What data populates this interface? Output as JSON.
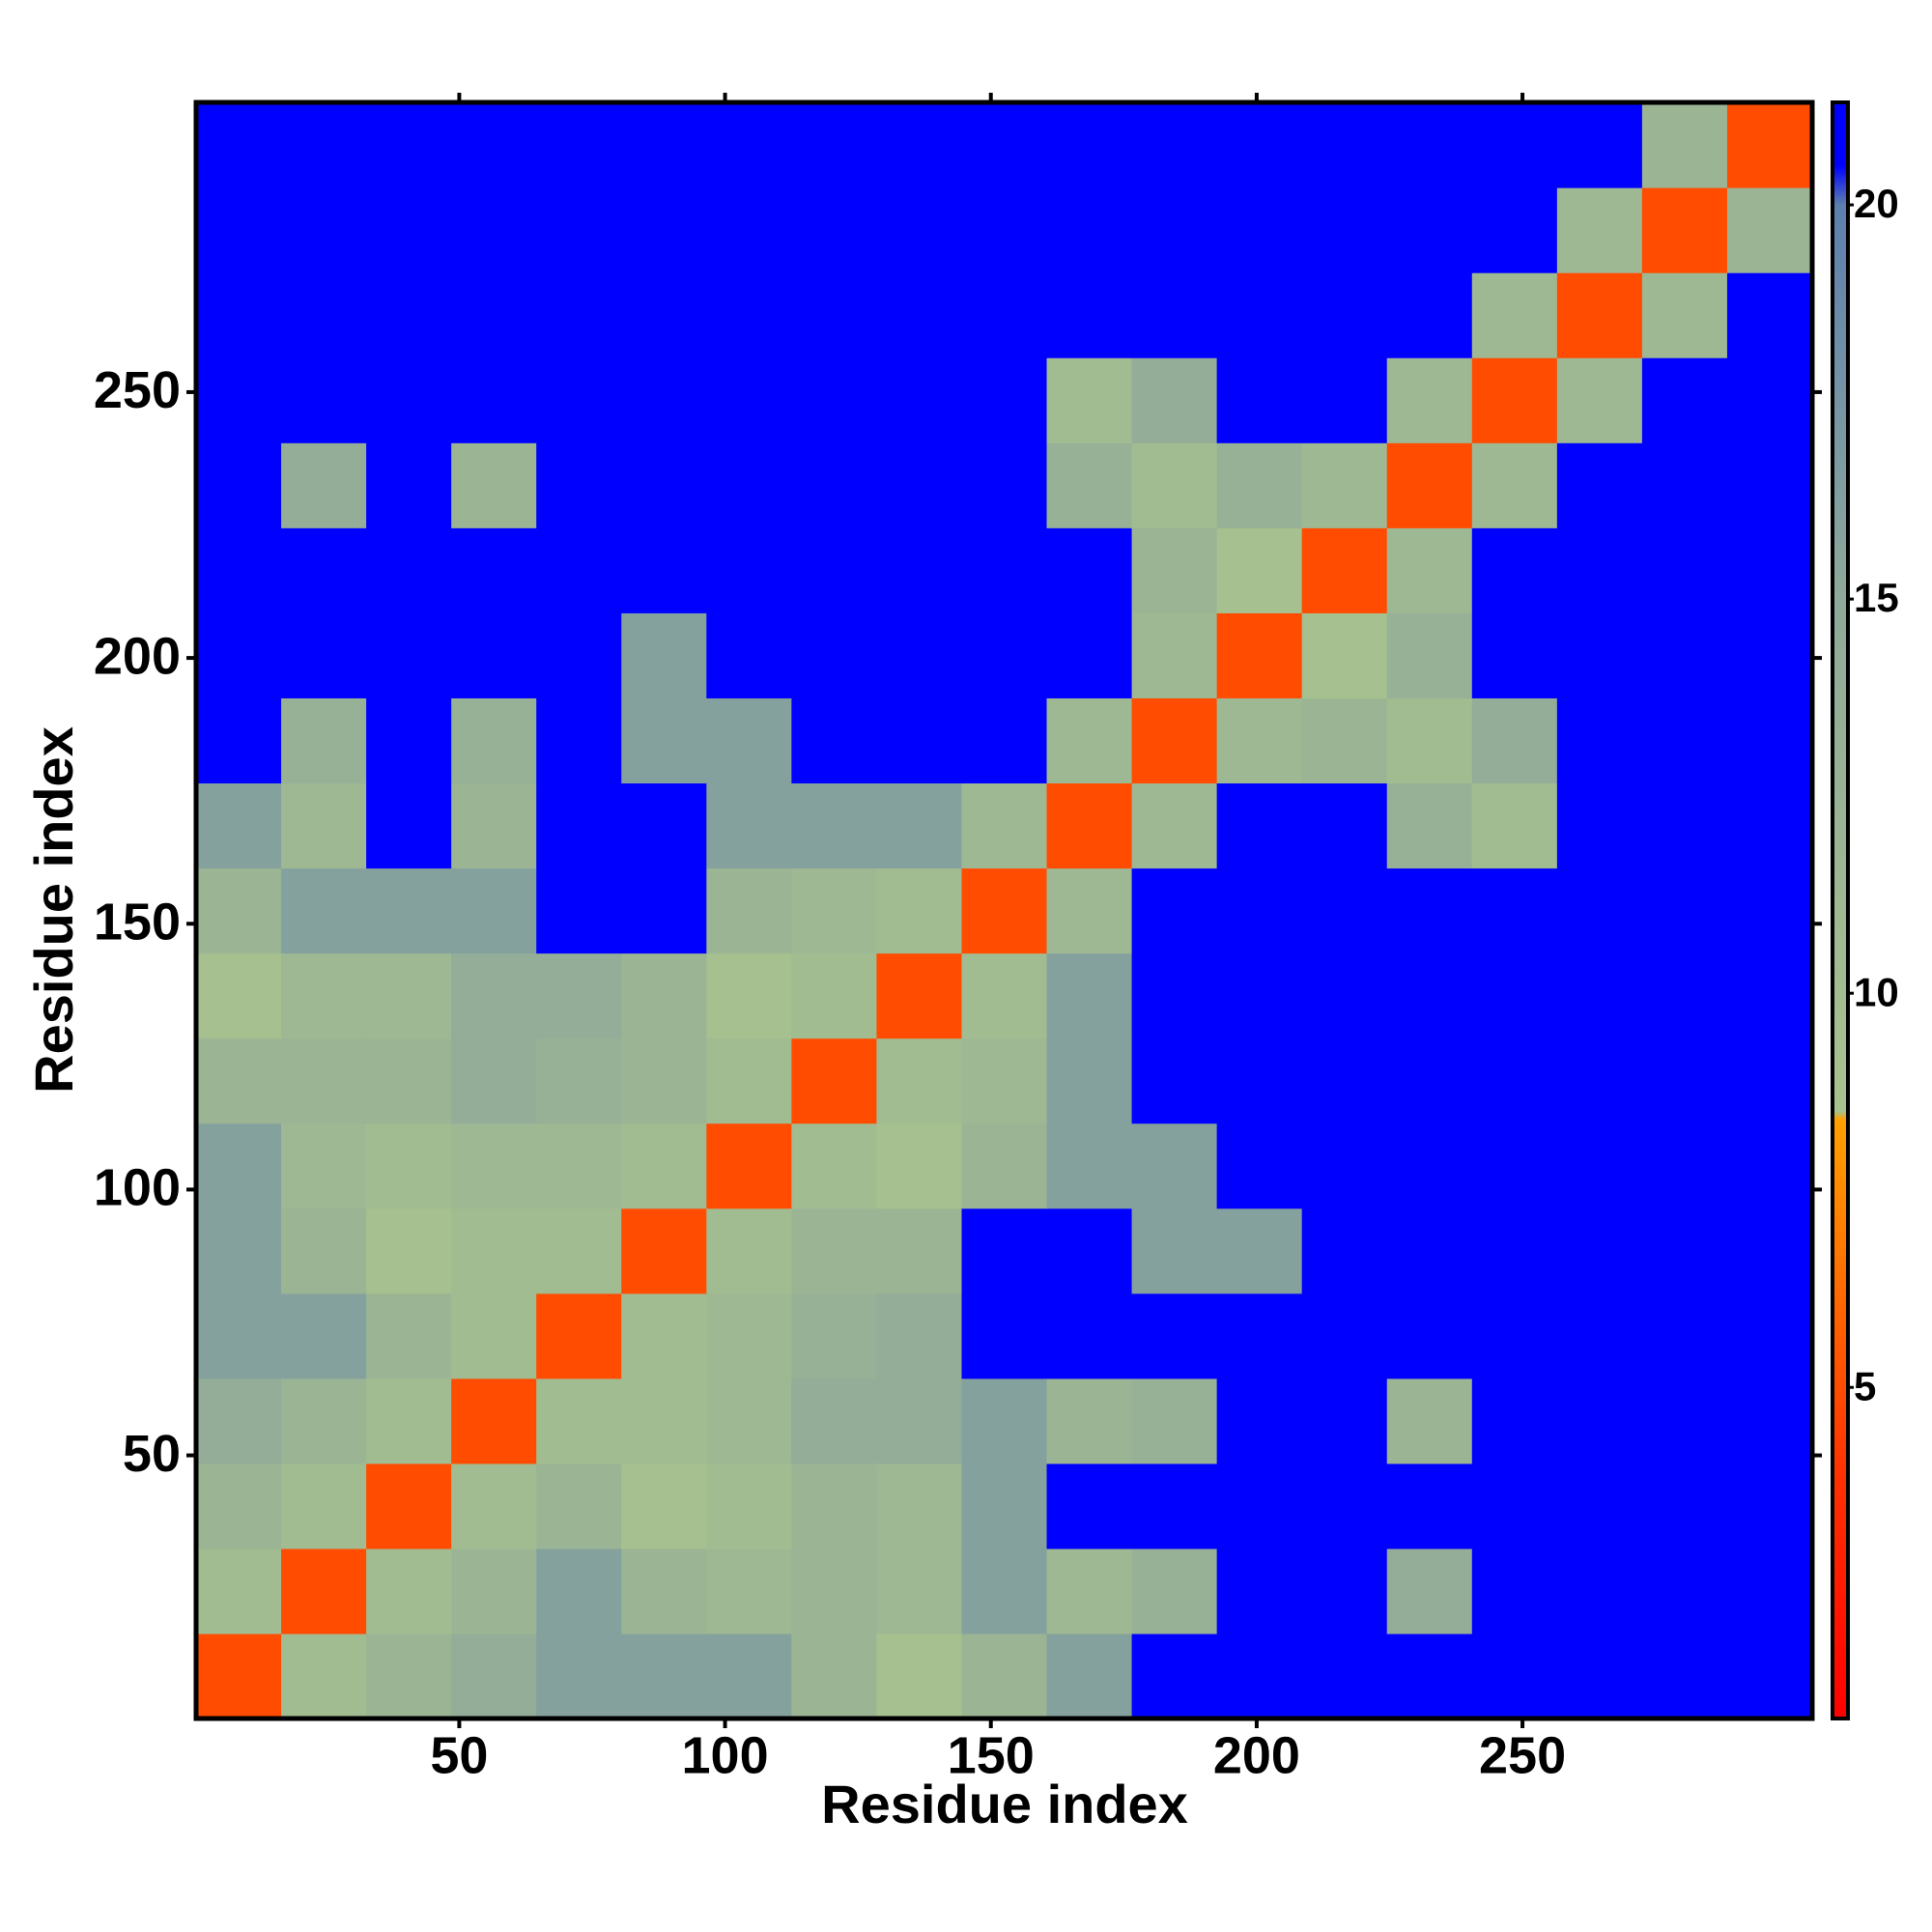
{
  "chart_data": {
    "type": "heatmap",
    "xlabel": "Residue index",
    "ylabel": "Residue index",
    "x": [
      8.5,
      24.5,
      40.5,
      56.5,
      72.5,
      88.5,
      104.5,
      120.5,
      136.5,
      152.5,
      168.5,
      184.5,
      200.5,
      216.5,
      232.5,
      248.5,
      264.5,
      280.5,
      296.5
    ],
    "y": [
      8.5,
      24.5,
      40.5,
      56.5,
      72.5,
      88.5,
      104.5,
      120.5,
      136.5,
      152.5,
      168.5,
      184.5,
      200.5,
      216.5,
      232.5,
      248.5,
      264.5,
      280.5,
      296.5
    ],
    "z": [
      [
        5,
        10,
        12,
        14,
        16,
        16,
        16,
        12,
        9,
        12,
        16,
        21,
        21,
        21,
        21,
        21,
        21,
        21,
        21
      ],
      [
        10,
        5,
        10,
        12,
        16,
        12,
        11,
        12,
        11,
        16,
        11,
        13,
        21,
        21,
        14,
        21,
        21,
        21,
        21
      ],
      [
        12,
        10,
        5,
        10,
        12,
        9,
        10,
        12,
        11,
        16,
        21,
        21,
        21,
        21,
        21,
        21,
        21,
        21,
        21
      ],
      [
        14,
        12,
        10,
        5,
        10,
        10,
        11,
        14,
        14,
        16,
        12,
        13,
        21,
        21,
        12,
        21,
        21,
        21,
        21
      ],
      [
        16,
        16,
        12,
        10,
        5,
        10,
        11,
        13,
        14,
        21,
        21,
        21,
        21,
        21,
        21,
        21,
        21,
        21,
        21
      ],
      [
        16,
        12,
        9,
        10,
        10,
        5,
        10,
        12,
        12,
        21,
        21,
        16,
        16,
        21,
        21,
        21,
        21,
        21,
        21
      ],
      [
        16,
        11,
        10,
        11,
        11,
        10,
        5,
        10,
        9,
        12,
        16,
        16,
        21,
        21,
        21,
        21,
        21,
        21,
        21
      ],
      [
        12,
        12,
        12,
        14,
        13,
        12,
        10,
        5,
        10,
        11,
        16,
        21,
        21,
        21,
        21,
        21,
        21,
        21,
        21
      ],
      [
        9,
        11,
        11,
        14,
        14,
        12,
        9,
        10,
        5,
        10,
        16,
        21,
        21,
        21,
        21,
        21,
        21,
        21,
        21
      ],
      [
        12,
        16,
        16,
        16,
        21,
        21,
        12,
        11,
        10,
        5,
        11,
        21,
        21,
        21,
        21,
        21,
        21,
        21,
        21
      ],
      [
        16,
        11,
        21,
        12,
        21,
        21,
        16,
        16,
        16,
        11,
        5,
        11,
        21,
        21,
        13,
        10,
        21,
        21,
        21
      ],
      [
        21,
        13,
        21,
        13,
        21,
        16,
        16,
        21,
        21,
        21,
        11,
        5,
        11,
        12,
        10,
        14,
        21,
        21,
        21
      ],
      [
        21,
        21,
        21,
        21,
        21,
        16,
        21,
        21,
        21,
        21,
        21,
        11,
        5,
        9,
        13,
        21,
        21,
        21,
        21
      ],
      [
        21,
        21,
        21,
        21,
        21,
        21,
        21,
        21,
        21,
        21,
        21,
        12,
        9,
        5,
        11,
        21,
        21,
        21,
        21
      ],
      [
        21,
        14,
        21,
        12,
        21,
        21,
        21,
        21,
        21,
        21,
        13,
        10,
        13,
        11,
        5,
        11,
        21,
        21,
        21
      ],
      [
        21,
        21,
        21,
        21,
        21,
        21,
        21,
        21,
        21,
        21,
        10,
        14,
        21,
        21,
        11,
        5,
        11,
        21,
        21
      ],
      [
        21,
        21,
        21,
        21,
        21,
        21,
        21,
        21,
        21,
        21,
        21,
        21,
        21,
        21,
        21,
        11,
        5,
        11,
        21
      ],
      [
        21,
        21,
        21,
        21,
        21,
        21,
        21,
        21,
        21,
        21,
        21,
        21,
        21,
        21,
        21,
        21,
        11,
        5,
        12
      ],
      [
        21,
        21,
        21,
        21,
        21,
        21,
        21,
        21,
        21,
        21,
        21,
        21,
        21,
        21,
        21,
        21,
        21,
        12,
        5
      ]
    ],
    "xlim": [
      0.5,
      304.5
    ],
    "ylim": [
      0.5,
      304.5
    ],
    "xticks": [
      50,
      100,
      150,
      200,
      250
    ],
    "yticks": [
      50,
      100,
      150,
      200,
      250
    ],
    "zlim": [
      0.8,
      21.3
    ],
    "colorbar_ticks": [
      5,
      10,
      15,
      20
    ],
    "colorscale": [
      {
        "value": 0.8,
        "color": "#ff0000"
      },
      {
        "value": 4,
        "color": "#ff3300"
      },
      {
        "value": 8.4,
        "color": "#ffa000"
      },
      {
        "value": 8.5,
        "color": "#a8c28e"
      },
      {
        "value": 15,
        "color": "#8fa99a"
      },
      {
        "value": 20,
        "color": "#5d7fae"
      },
      {
        "value": 20.5,
        "color": "#0000ff"
      },
      {
        "value": 21.3,
        "color": "#0000ff"
      }
    ]
  }
}
